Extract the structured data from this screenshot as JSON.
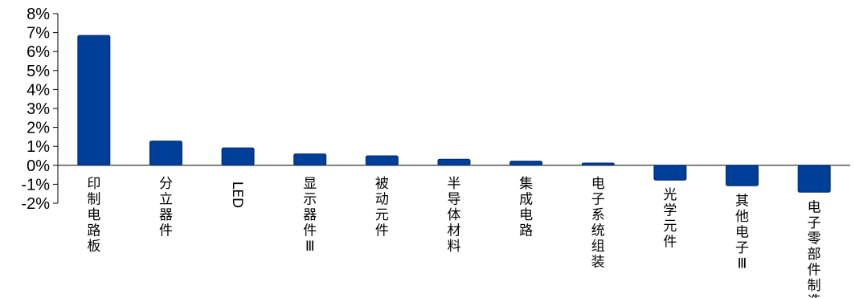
{
  "chart_data": {
    "type": "bar",
    "categories": [
      "印制电路板",
      "分立器件",
      "LED",
      "显示器件Ⅲ",
      "被动元件",
      "半导体材料",
      "集成电路",
      "电子系统组装",
      "光学元件",
      "其他电子Ⅲ",
      "电子零部件制造"
    ],
    "values": [
      6.85,
      1.28,
      0.92,
      0.6,
      0.5,
      0.32,
      0.22,
      0.12,
      -0.78,
      -1.08,
      -1.42
    ],
    "ylim": [
      -2,
      8
    ],
    "yticks": [
      -2,
      -1,
      0,
      1,
      2,
      3,
      4,
      5,
      6,
      7,
      8
    ],
    "ytick_labels": [
      "-2%",
      "-1%",
      "0%",
      "1%",
      "2%",
      "3%",
      "4%",
      "5%",
      "6%",
      "7%",
      "8%"
    ],
    "bar_color": "#003f98",
    "grid": false,
    "legend": "none"
  }
}
